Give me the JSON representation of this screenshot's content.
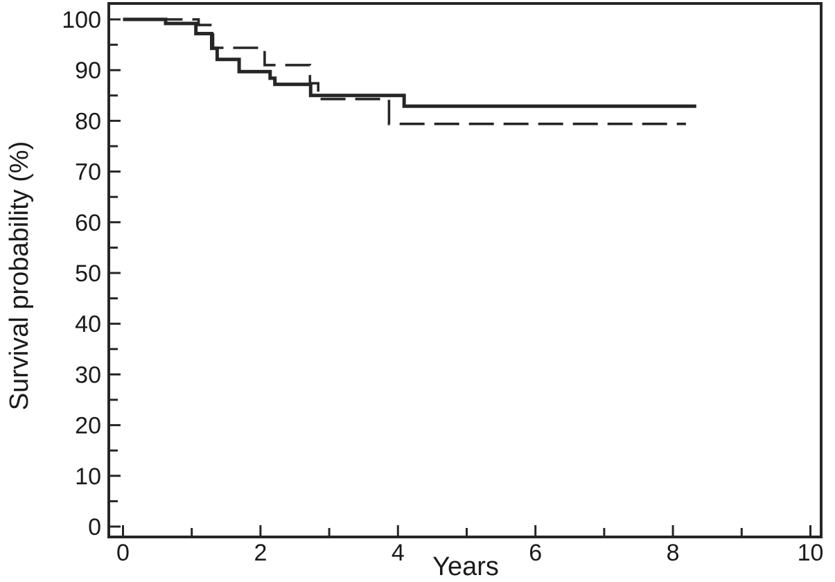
{
  "figure": {
    "background": "#ffffff",
    "line_color": "#262626",
    "label_color": "#1a1a1a"
  },
  "chart_data": {
    "type": "line",
    "subtype": "kaplan-meier-step-curves",
    "title": "",
    "xlabel": "Years",
    "ylabel": "Survival probability (%)",
    "grid": false,
    "legend": null,
    "x_axis": {
      "range": [
        0,
        10
      ],
      "major_ticks": [
        0,
        2,
        4,
        6,
        8,
        10
      ],
      "minor_ticks": [
        1,
        3,
        5,
        7,
        9
      ],
      "tick_labels": [
        "0",
        "2",
        "4",
        "6",
        "8",
        "10"
      ]
    },
    "y_axis": {
      "range": [
        0,
        100
      ],
      "major_ticks": [
        0,
        10,
        20,
        30,
        40,
        50,
        60,
        70,
        80,
        90,
        100
      ],
      "minor_ticks": [
        5,
        15,
        25,
        35,
        45,
        55,
        65,
        75,
        85,
        95
      ],
      "tick_labels": [
        "0",
        "10",
        "20",
        "30",
        "40",
        "50",
        "60",
        "70",
        "80",
        "90",
        "100"
      ]
    },
    "series": [
      {
        "name": "solid-group",
        "line_style": "solid",
        "start": {
          "t": 0,
          "p": 100
        },
        "steps": [
          {
            "t": 0.62,
            "p": 99.2
          },
          {
            "t": 1.06,
            "p": 97.2
          },
          {
            "t": 1.29,
            "p": 94.3
          },
          {
            "t": 1.37,
            "p": 92.1
          },
          {
            "t": 1.69,
            "p": 89.7
          },
          {
            "t": 2.14,
            "p": 88.4
          },
          {
            "t": 2.21,
            "p": 87.2
          },
          {
            "t": 2.73,
            "p": 85.0
          },
          {
            "t": 4.09,
            "p": 82.9
          }
        ],
        "end_t": 8.34,
        "final_p": 82.9
      },
      {
        "name": "dashed-group",
        "line_style": "dashed",
        "start": {
          "t": 0,
          "p": 100
        },
        "steps": [
          {
            "t": 1.1,
            "p": 98.9
          },
          {
            "t": 1.31,
            "p": 94.4
          },
          {
            "t": 2.06,
            "p": 91.0
          },
          {
            "t": 2.72,
            "p": 87.4
          },
          {
            "t": 2.84,
            "p": 84.3
          },
          {
            "t": 3.87,
            "p": 79.4
          }
        ],
        "end_t": 8.19,
        "final_p": 79.4
      }
    ]
  }
}
